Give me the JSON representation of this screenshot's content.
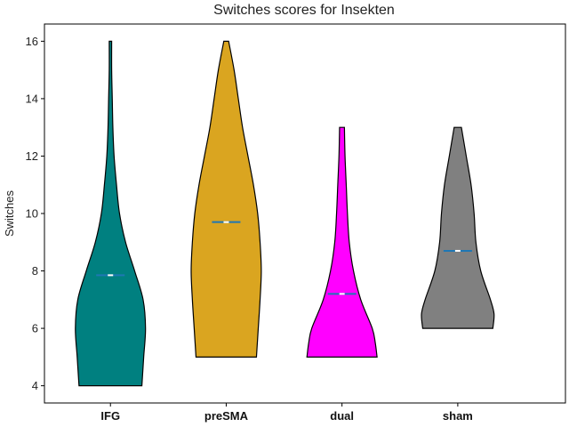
{
  "chart_data": {
    "type": "violin",
    "title": "Switches scores for Insekten",
    "xlabel": "",
    "ylabel": "Switches",
    "ylim": [
      3.4,
      16.6
    ],
    "yticks": [
      4,
      6,
      8,
      10,
      12,
      14,
      16
    ],
    "categories": [
      "IFG",
      "preSMA",
      "dual",
      "sham"
    ],
    "grid": false,
    "series": [
      {
        "category": "IFG",
        "color": "#008080",
        "min": 4,
        "max": 16,
        "mean": 7.85,
        "density_profile": [
          [
            4,
            0.52
          ],
          [
            5,
            0.55
          ],
          [
            6,
            0.58
          ],
          [
            7,
            0.54
          ],
          [
            8,
            0.4
          ],
          [
            9,
            0.25
          ],
          [
            10,
            0.15
          ],
          [
            11,
            0.1
          ],
          [
            12,
            0.06
          ],
          [
            13,
            0.04
          ],
          [
            14,
            0.03
          ],
          [
            15,
            0.02
          ],
          [
            16,
            0.02
          ]
        ]
      },
      {
        "category": "preSMA",
        "color": "#DAA520",
        "min": 5,
        "max": 16,
        "mean": 9.7,
        "density_profile": [
          [
            5,
            0.5
          ],
          [
            6,
            0.53
          ],
          [
            7,
            0.56
          ],
          [
            8,
            0.58
          ],
          [
            9,
            0.56
          ],
          [
            10,
            0.52
          ],
          [
            11,
            0.45
          ],
          [
            12,
            0.36
          ],
          [
            13,
            0.27
          ],
          [
            14,
            0.2
          ],
          [
            15,
            0.13
          ],
          [
            16,
            0.04
          ]
        ]
      },
      {
        "category": "dual",
        "color": "#FF00FF",
        "min": 5,
        "max": 13,
        "mean": 7.2,
        "density_profile": [
          [
            5,
            0.58
          ],
          [
            5.5,
            0.55
          ],
          [
            6,
            0.5
          ],
          [
            7,
            0.31
          ],
          [
            8,
            0.19
          ],
          [
            9,
            0.12
          ],
          [
            10,
            0.09
          ],
          [
            11,
            0.07
          ],
          [
            12,
            0.05
          ],
          [
            13,
            0.04
          ]
        ]
      },
      {
        "category": "sham",
        "color": "#808080",
        "min": 6,
        "max": 13,
        "mean": 8.7,
        "density_profile": [
          [
            6,
            0.58
          ],
          [
            6.5,
            0.6
          ],
          [
            7,
            0.54
          ],
          [
            8,
            0.38
          ],
          [
            9,
            0.3
          ],
          [
            10,
            0.27
          ],
          [
            11,
            0.22
          ],
          [
            12,
            0.14
          ],
          [
            13,
            0.06
          ]
        ]
      }
    ]
  }
}
